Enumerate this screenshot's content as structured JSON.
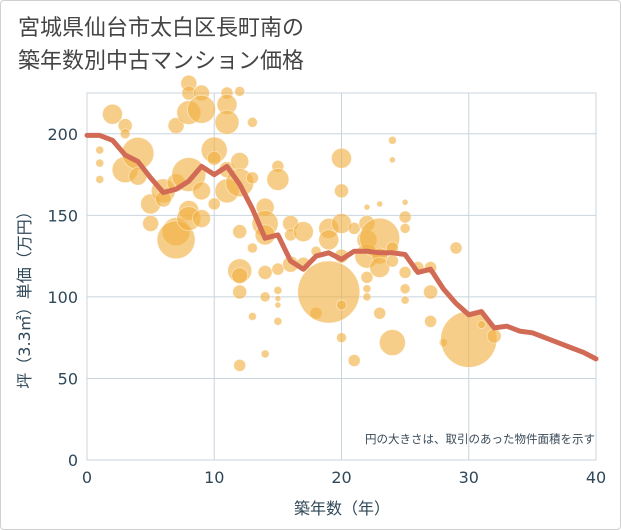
{
  "title": {
    "line1": "宮城県仙台市太白区長町南の",
    "line2": "築年数別中古マンション価格"
  },
  "chart_data": {
    "type": "scatter",
    "title": "宮城県仙台市太白区長町南の築年数別中古マンション価格",
    "xlabel": "築年数（年）",
    "ylabel": "坪（3.3㎡）単価（万円）",
    "xlim": [
      0,
      40
    ],
    "ylim": [
      0,
      225
    ],
    "xticks": [
      0,
      10,
      20,
      30,
      40
    ],
    "yticks": [
      0,
      50,
      100,
      150,
      200
    ],
    "grid": true,
    "note": "円の大きさは、取引のあった物件面積を示す",
    "colors": {
      "bubble": "#f0b040",
      "line": "#d26b55",
      "grid": "#c8d4de",
      "axis_text": "#2f4858"
    },
    "bubbles": [
      [
        1,
        190,
        4
      ],
      [
        1,
        182,
        4
      ],
      [
        1,
        172,
        4
      ],
      [
        2,
        212,
        10
      ],
      [
        3,
        205,
        7
      ],
      [
        3,
        200,
        5
      ],
      [
        3,
        178,
        13
      ],
      [
        4,
        188,
        16
      ],
      [
        4,
        174,
        9
      ],
      [
        5,
        157,
        10
      ],
      [
        5,
        145,
        8
      ],
      [
        6,
        165,
        12
      ],
      [
        6,
        160,
        8
      ],
      [
        7,
        205,
        8
      ],
      [
        7,
        170,
        9
      ],
      [
        7,
        140,
        14
      ],
      [
        7,
        135,
        19
      ],
      [
        8,
        231,
        8
      ],
      [
        8,
        225,
        7
      ],
      [
        8,
        213,
        12
      ],
      [
        8,
        175,
        17
      ],
      [
        8,
        153,
        10
      ],
      [
        8,
        148,
        12
      ],
      [
        9,
        225,
        8
      ],
      [
        9,
        215,
        14
      ],
      [
        9,
        165,
        9
      ],
      [
        9,
        148,
        9
      ],
      [
        10,
        190,
        13
      ],
      [
        10,
        185,
        7
      ],
      [
        10,
        157,
        6
      ],
      [
        11,
        225,
        6
      ],
      [
        11,
        218,
        10
      ],
      [
        11,
        207,
        12
      ],
      [
        11,
        178,
        8
      ],
      [
        11,
        165,
        12
      ],
      [
        12,
        226,
        5
      ],
      [
        12,
        183,
        9
      ],
      [
        12,
        170,
        14
      ],
      [
        12,
        140,
        7
      ],
      [
        12,
        116,
        12
      ],
      [
        12,
        113,
        8
      ],
      [
        12,
        103,
        7
      ],
      [
        12,
        58,
        6
      ],
      [
        13,
        207,
        5
      ],
      [
        13,
        173,
        6
      ],
      [
        13,
        130,
        5
      ],
      [
        13,
        88,
        4
      ],
      [
        14,
        155,
        9
      ],
      [
        14,
        145,
        13
      ],
      [
        14,
        138,
        10
      ],
      [
        14,
        115,
        7
      ],
      [
        14,
        100,
        5
      ],
      [
        14,
        65,
        4
      ],
      [
        15,
        180,
        6
      ],
      [
        15,
        172,
        11
      ],
      [
        15,
        117,
        6
      ],
      [
        15,
        104,
        4
      ],
      [
        15,
        99,
        3
      ],
      [
        15,
        95,
        3
      ],
      [
        15,
        85,
        4
      ],
      [
        16,
        145,
        8
      ],
      [
        16,
        138,
        6
      ],
      [
        16,
        120,
        8
      ],
      [
        17,
        140,
        10
      ],
      [
        17,
        120,
        7
      ],
      [
        18,
        128,
        5
      ],
      [
        18,
        90,
        6
      ],
      [
        19,
        142,
        10
      ],
      [
        19,
        135,
        10
      ],
      [
        19,
        103,
        31
      ],
      [
        20,
        185,
        10
      ],
      [
        20,
        165,
        7
      ],
      [
        20,
        145,
        10
      ],
      [
        20,
        125,
        7
      ],
      [
        20,
        95,
        5
      ],
      [
        20,
        75,
        5
      ],
      [
        21,
        142,
        6
      ],
      [
        21,
        61,
        6
      ],
      [
        22,
        155,
        3
      ],
      [
        22,
        145,
        8
      ],
      [
        22,
        135,
        10
      ],
      [
        22,
        125,
        12
      ],
      [
        22,
        112,
        6
      ],
      [
        22,
        105,
        4
      ],
      [
        22,
        100,
        4
      ],
      [
        23,
        157,
        3
      ],
      [
        23,
        136,
        20
      ],
      [
        23,
        125,
        8
      ],
      [
        23,
        118,
        10
      ],
      [
        23,
        90,
        6
      ],
      [
        24,
        196,
        4
      ],
      [
        24,
        184,
        3
      ],
      [
        24,
        130,
        6
      ],
      [
        24,
        122,
        6
      ],
      [
        24,
        72,
        13
      ],
      [
        25,
        158,
        3
      ],
      [
        25,
        149,
        6
      ],
      [
        25,
        142,
        5
      ],
      [
        25,
        115,
        6
      ],
      [
        25,
        105,
        5
      ],
      [
        25,
        98,
        4
      ],
      [
        26,
        118,
        6
      ],
      [
        27,
        118,
        6
      ],
      [
        27,
        103,
        7
      ],
      [
        27,
        85,
        6
      ],
      [
        28,
        72,
        4
      ],
      [
        29,
        130,
        6
      ],
      [
        30,
        74,
        28
      ],
      [
        31,
        83,
        4
      ],
      [
        32,
        76,
        7
      ]
    ],
    "series": [
      {
        "name": "",
        "x": [
          0,
          1,
          2,
          3,
          4,
          5,
          6,
          7,
          8,
          9,
          10,
          11,
          12,
          13,
          14,
          15,
          16,
          17,
          18,
          19,
          20,
          21,
          22,
          23,
          24,
          25,
          26,
          27,
          28,
          29,
          30,
          31,
          32,
          33,
          34,
          35,
          36,
          37,
          38,
          39,
          40
        ],
        "values": [
          199,
          199,
          196,
          187,
          183,
          173,
          164,
          166,
          171,
          180,
          175,
          180,
          169,
          154,
          136,
          138,
          122,
          117,
          125,
          127,
          123,
          128,
          128,
          127,
          127,
          126,
          115,
          117,
          105,
          96,
          89,
          91,
          81,
          82,
          79,
          78,
          75,
          72,
          69,
          66,
          62
        ]
      }
    ]
  }
}
